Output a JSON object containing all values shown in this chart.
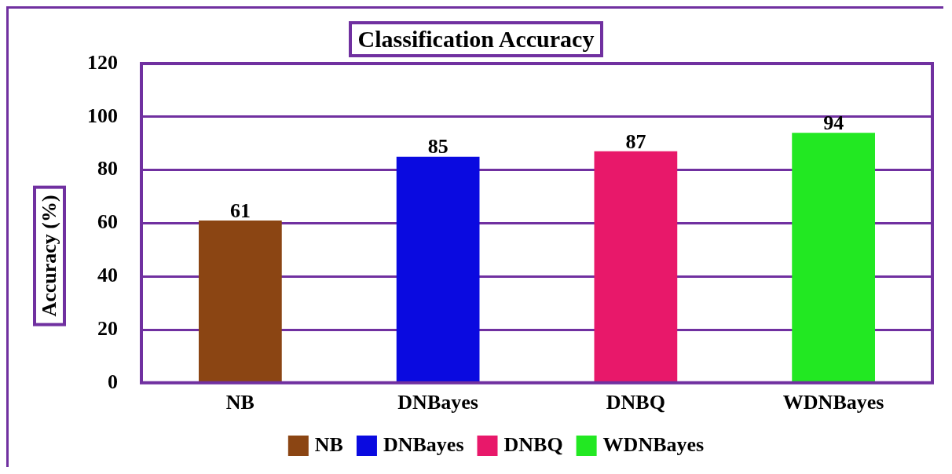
{
  "chart_data": {
    "type": "bar",
    "title": "Classification Accuracy",
    "ylabel": "Accuracy (%)",
    "categories": [
      "NB",
      "DNBayes",
      "DNBQ",
      "WDNBayes"
    ],
    "series": [
      {
        "name": "NB",
        "color": "#8b4513",
        "values": [
          61,
          null,
          null,
          null
        ]
      },
      {
        "name": "DNBayes",
        "color": "#0a0ae0",
        "values": [
          null,
          85,
          null,
          null
        ]
      },
      {
        "name": "DNBQ",
        "color": "#e8186a",
        "values": [
          null,
          null,
          87,
          null
        ]
      },
      {
        "name": "WDNBayes",
        "color": "#22e822",
        "values": [
          null,
          null,
          null,
          94
        ]
      }
    ],
    "ylim": [
      0,
      120
    ],
    "yticks": [
      0,
      20,
      40,
      60,
      80,
      100,
      120
    ],
    "grid": "y",
    "legend": "bottom",
    "data_labels": true
  }
}
